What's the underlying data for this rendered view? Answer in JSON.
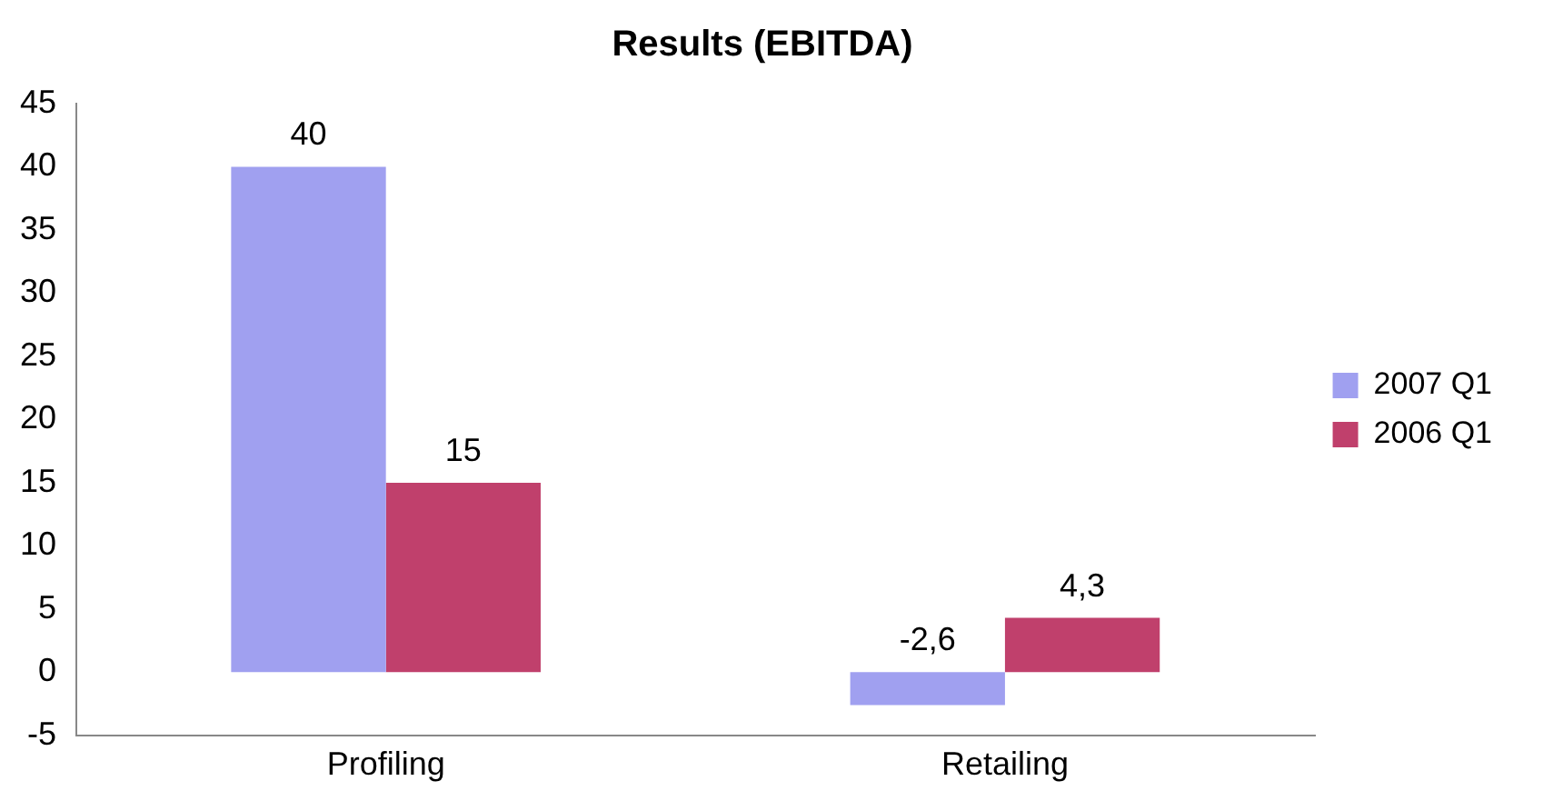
{
  "chart_data": {
    "type": "bar",
    "title": "Results (EBITDA)",
    "categories": [
      "Profiling",
      "Retailing"
    ],
    "series": [
      {
        "name": "2007 Q1",
        "color": "#a0a0f0",
        "values": [
          40,
          -2.6
        ],
        "value_labels": [
          "40",
          "-2,6"
        ]
      },
      {
        "name": "2006 Q1",
        "color": "#c0406c",
        "values": [
          15,
          4.3
        ],
        "value_labels": [
          "15",
          "4,3"
        ]
      }
    ],
    "ylim": [
      -5,
      45
    ],
    "yticks": [
      -5,
      0,
      5,
      10,
      15,
      20,
      25,
      30,
      35,
      40,
      45
    ],
    "grid": false,
    "legend": "right"
  }
}
